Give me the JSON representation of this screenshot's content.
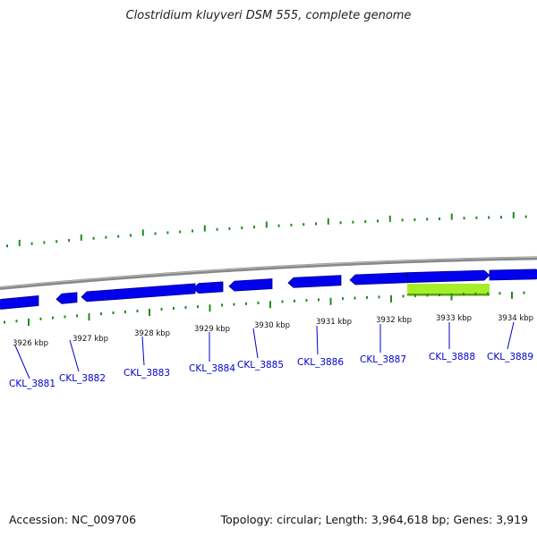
{
  "title": "Clostridium kluyveri DSM 555, complete genome",
  "footer": {
    "accession": "Accession: NC_009706",
    "summary": "Topology: circular; Length: 3,964,618 bp; Genes: 3,919"
  },
  "colors": {
    "backbone": "#888888",
    "gene": "#0000ee",
    "gene_dark": "#000088",
    "highlight": "#a6ee2a",
    "highlight_dark": "#5aa010",
    "ticks": "#1f8c1f",
    "label": "#0000cc"
  },
  "kbp_labels": [
    {
      "kbp": 3926,
      "text": "3926 kbp"
    },
    {
      "kbp": 3927,
      "text": "3927 kbp"
    },
    {
      "kbp": 3928,
      "text": "3928 kbp"
    },
    {
      "kbp": 3929,
      "text": "3929 kbp"
    },
    {
      "kbp": 3930,
      "text": "3930 kbp"
    },
    {
      "kbp": 3931,
      "text": "3931 kbp"
    },
    {
      "kbp": 3932,
      "text": "3932 kbp"
    },
    {
      "kbp": 3933,
      "text": "3933 kbp"
    },
    {
      "kbp": 3934,
      "text": "3934 kbp"
    }
  ],
  "genes": [
    {
      "name": "CKL_3881",
      "strand": "reverse"
    },
    {
      "name": "CKL_3882",
      "strand": "reverse"
    },
    {
      "name": "CKL_3883",
      "strand": "reverse"
    },
    {
      "name": "CKL_3884",
      "strand": "reverse"
    },
    {
      "name": "CKL_3885",
      "strand": "reverse"
    },
    {
      "name": "CKL_3886",
      "strand": "reverse"
    },
    {
      "name": "CKL_3887",
      "strand": "reverse"
    },
    {
      "name": "CKL_3888",
      "strand": "forward"
    },
    {
      "name": "CKL_3889",
      "strand": "forward"
    }
  ],
  "highlight_region": {
    "name": "selected-region"
  }
}
